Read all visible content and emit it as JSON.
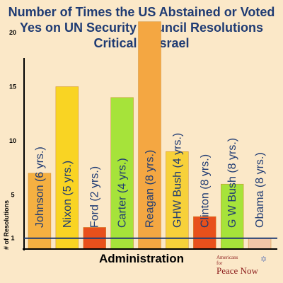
{
  "chart_data": {
    "type": "bar",
    "title": "Number of Times the US Abstained or Voted Yes on UN Security Council Resolutions Critical of Israel",
    "xlabel": "Administration",
    "ylabel": "# of Resolutions",
    "yticks": [
      1,
      5,
      10,
      15,
      20
    ],
    "ylim": [
      0,
      21
    ],
    "categories": [
      "Johnson (6 yrs.)",
      "Nixon (5 yrs.)",
      "Ford (2 yrs.)",
      "Carter (4 yrs.)",
      "Reagan (8 yrs.)",
      "GHW Bush (4 yrs.)",
      "Clinton (8 yrs.)",
      "G W Bush (8 yrs.)",
      "Obama (8 yrs.)"
    ],
    "values": [
      7,
      15,
      2,
      14,
      21,
      9,
      3,
      6,
      1
    ],
    "colors": [
      "#f5b041",
      "#f9d423",
      "#e8501c",
      "#a6e33a",
      "#f4a742",
      "#f7d13a",
      "#e8501c",
      "#a6e33a",
      "#f3c7a8"
    ],
    "grid": false,
    "legend": "none"
  },
  "logo": {
    "line1": "Americans",
    "line2": "for",
    "line3": "Peace Now",
    "icon": "star-of-david-icon"
  }
}
